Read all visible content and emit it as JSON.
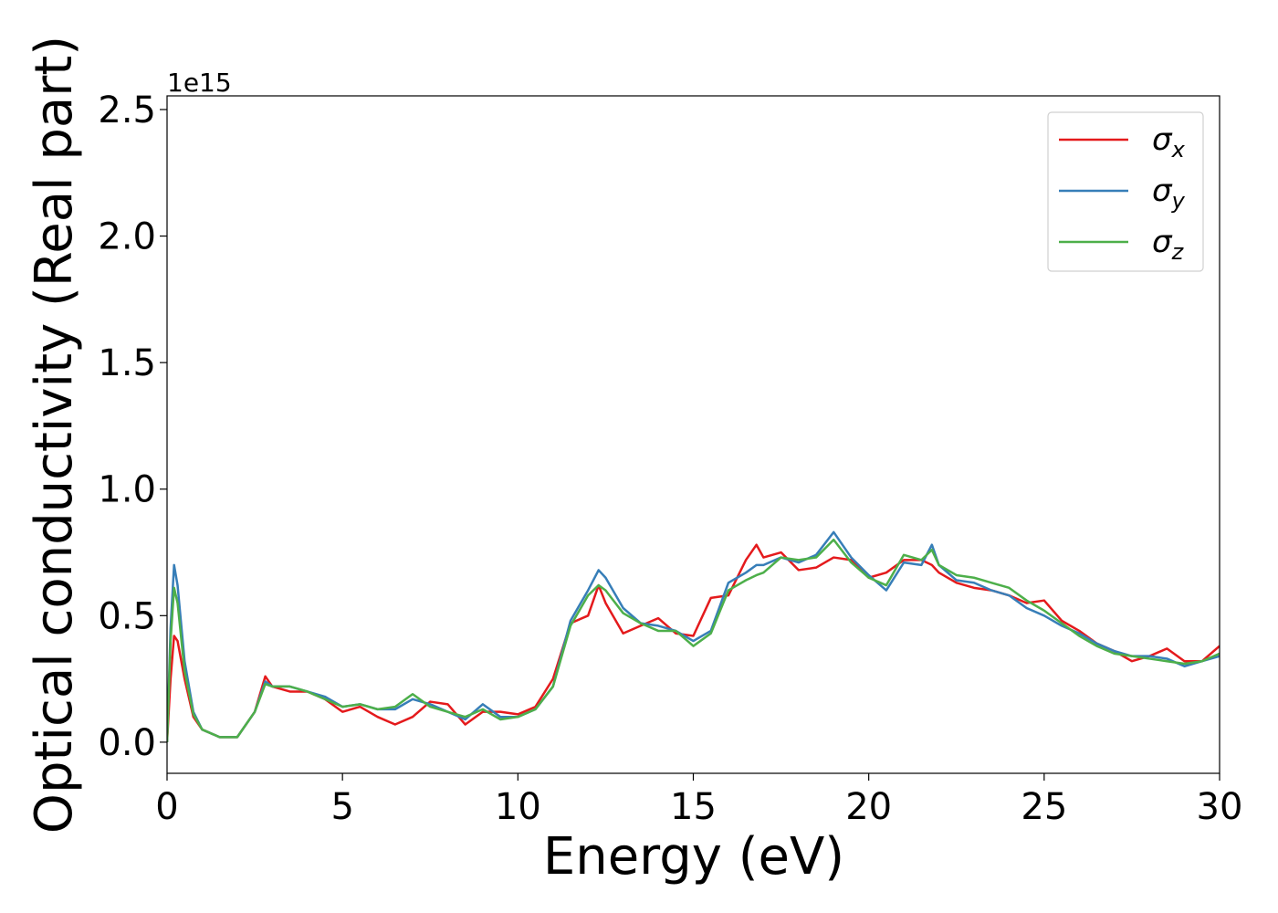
{
  "chart_data": {
    "type": "line",
    "xlabel": "Energy (eV)",
    "ylabel": "Optical conductivity (Real part)",
    "y_offset_label": "1e15",
    "x": [
      0,
      0.1,
      0.2,
      0.3,
      0.5,
      0.75,
      1,
      1.5,
      2,
      2.5,
      2.8,
      3,
      3.5,
      4,
      4.5,
      5,
      5.5,
      6,
      6.5,
      7,
      7.5,
      8,
      8.5,
      9,
      9.5,
      10,
      10.5,
      11,
      11.5,
      12,
      12.3,
      12.5,
      13,
      13.5,
      14,
      14.5,
      15,
      15.5,
      16,
      16.5,
      16.8,
      17,
      17.5,
      18,
      18.5,
      19,
      19.5,
      20,
      20.5,
      21,
      21.5,
      21.8,
      22,
      22.5,
      23,
      23.5,
      24,
      24.5,
      25,
      25.5,
      26,
      26.5,
      27,
      27.5,
      28,
      28.5,
      29,
      29.5,
      30
    ],
    "series": [
      {
        "name": "σx",
        "color": "#e41a1c",
        "values": [
          0,
          0.25,
          0.42,
          0.4,
          0.25,
          0.1,
          0.05,
          0.02,
          0.02,
          0.12,
          0.26,
          0.22,
          0.2,
          0.2,
          0.17,
          0.12,
          0.14,
          0.1,
          0.07,
          0.1,
          0.16,
          0.15,
          0.07,
          0.12,
          0.12,
          0.11,
          0.14,
          0.25,
          0.47,
          0.5,
          0.62,
          0.55,
          0.43,
          0.46,
          0.49,
          0.43,
          0.42,
          0.57,
          0.58,
          0.72,
          0.78,
          0.73,
          0.75,
          0.68,
          0.69,
          0.73,
          0.72,
          0.65,
          0.67,
          0.72,
          0.72,
          0.7,
          0.67,
          0.63,
          0.61,
          0.6,
          0.58,
          0.55,
          0.56,
          0.48,
          0.44,
          0.39,
          0.36,
          0.32,
          0.34,
          0.37,
          0.32,
          0.32,
          0.38
        ]
      },
      {
        "name": "σy",
        "color": "#377eb8",
        "values": [
          0,
          0.45,
          0.7,
          0.62,
          0.32,
          0.12,
          0.05,
          0.02,
          0.02,
          0.12,
          0.24,
          0.22,
          0.22,
          0.2,
          0.18,
          0.14,
          0.15,
          0.13,
          0.13,
          0.17,
          0.15,
          0.12,
          0.09,
          0.15,
          0.1,
          0.1,
          0.13,
          0.22,
          0.48,
          0.6,
          0.68,
          0.65,
          0.53,
          0.47,
          0.46,
          0.44,
          0.4,
          0.44,
          0.63,
          0.67,
          0.7,
          0.7,
          0.73,
          0.71,
          0.74,
          0.83,
          0.73,
          0.66,
          0.6,
          0.71,
          0.7,
          0.78,
          0.7,
          0.64,
          0.63,
          0.6,
          0.58,
          0.53,
          0.5,
          0.46,
          0.43,
          0.39,
          0.36,
          0.34,
          0.34,
          0.33,
          0.3,
          0.32,
          0.34
        ]
      },
      {
        "name": "σz",
        "color": "#4daf4a",
        "values": [
          0,
          0.4,
          0.61,
          0.55,
          0.28,
          0.11,
          0.05,
          0.02,
          0.02,
          0.12,
          0.23,
          0.22,
          0.22,
          0.2,
          0.17,
          0.14,
          0.15,
          0.13,
          0.14,
          0.19,
          0.14,
          0.12,
          0.1,
          0.13,
          0.09,
          0.1,
          0.13,
          0.22,
          0.46,
          0.58,
          0.62,
          0.6,
          0.51,
          0.47,
          0.44,
          0.44,
          0.38,
          0.43,
          0.6,
          0.64,
          0.66,
          0.67,
          0.73,
          0.72,
          0.73,
          0.8,
          0.71,
          0.65,
          0.62,
          0.74,
          0.72,
          0.76,
          0.7,
          0.66,
          0.65,
          0.63,
          0.61,
          0.56,
          0.52,
          0.47,
          0.42,
          0.38,
          0.35,
          0.34,
          0.33,
          0.32,
          0.31,
          0.32,
          0.35
        ]
      }
    ],
    "xlim": [
      0,
      30
    ],
    "xticks": [
      0,
      5,
      10,
      15,
      20,
      25,
      30
    ],
    "ylim": [
      -0.123,
      2.554
    ],
    "yticks": [
      {
        "value": 0,
        "label": "0.0"
      },
      0.5,
      {
        "value": 1,
        "label": "1.0"
      },
      1.5,
      {
        "value": 2,
        "label": "2.0"
      },
      2.5
    ],
    "legend": "upper right",
    "grid": false
  }
}
